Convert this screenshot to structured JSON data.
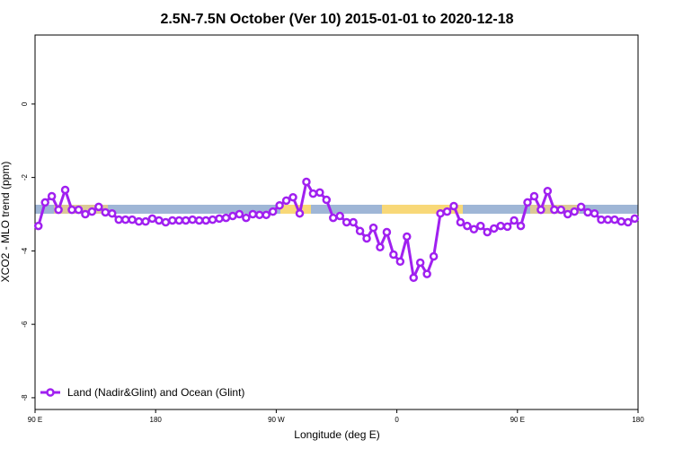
{
  "chart_data": {
    "type": "line",
    "title": "2.5N-7.5N October (Ver 10)   2015-01-01 to 2020-12-18",
    "xlabel": "Longitude (deg E)",
    "ylabel": "XCO2 - MLO trend (ppm)",
    "x": [
      92.5,
      97.5,
      102.5,
      107.5,
      112.5,
      117.5,
      122.5,
      127.5,
      132.5,
      137.5,
      142.5,
      147.5,
      152.5,
      157.5,
      162.5,
      167.5,
      172.5,
      177.5,
      182.5,
      187.5,
      192.5,
      197.5,
      202.5,
      207.5,
      212.5,
      217.5,
      222.5,
      227.5,
      232.5,
      237.5,
      242.5,
      247.5,
      252.5,
      257.5,
      262.5,
      267.5,
      272.5,
      277.5,
      282.5,
      287.5,
      292.5,
      297.5,
      302.5,
      307.5,
      312.5,
      317.5,
      322.5,
      327.5,
      332.5,
      337.5,
      342.5,
      347.5,
      352.5,
      357.5,
      362.5,
      367.5,
      372.5,
      377.5,
      382.5,
      387.5,
      392.5,
      397.5,
      402.5,
      407.5,
      412.5,
      417.5,
      422.5,
      427.5,
      432.5,
      437.5,
      442.5,
      447.5,
      452.5,
      457.5,
      462.5,
      467.5,
      472.5,
      477.5,
      482.5,
      487.5,
      492.5,
      497.5,
      502.5,
      507.5,
      512.5,
      517.5,
      522.5,
      527.5,
      532.5,
      537.5
    ],
    "series": [
      {
        "name": "Land (Nadir&Glint) and Ocean (Glint)",
        "color": "#a020f0",
        "values": [
          -3.32,
          -2.68,
          -2.51,
          -2.88,
          -2.34,
          -2.88,
          -2.88,
          -3.0,
          -2.93,
          -2.8,
          -2.95,
          -2.98,
          -3.15,
          -3.15,
          -3.15,
          -3.2,
          -3.2,
          -3.12,
          -3.17,
          -3.22,
          -3.17,
          -3.17,
          -3.17,
          -3.15,
          -3.17,
          -3.17,
          -3.15,
          -3.12,
          -3.1,
          -3.05,
          -3.0,
          -3.1,
          -3.0,
          -3.02,
          -3.02,
          -2.93,
          -2.76,
          -2.63,
          -2.54,
          -2.98,
          -2.12,
          -2.44,
          -2.41,
          -2.61,
          -3.1,
          -3.05,
          -3.22,
          -3.22,
          -3.46,
          -3.66,
          -3.37,
          -3.9,
          -3.49,
          -4.1,
          -4.29,
          -3.61,
          -4.73,
          -4.32,
          -4.63,
          -4.15,
          -2.98,
          -2.93,
          -2.78,
          -3.22,
          -3.32,
          -3.41,
          -3.32,
          -3.49,
          -3.39,
          -3.32,
          -3.34,
          -3.17,
          -3.32,
          -2.68,
          -2.51,
          -2.88,
          -2.37,
          -2.88,
          -2.88,
          -3.0,
          -2.93,
          -2.8,
          -2.95,
          -2.98,
          -3.15,
          -3.15,
          -3.15,
          -3.2,
          -3.22,
          -3.12
        ]
      }
    ],
    "xlim": [
      90,
      540
    ],
    "xticks": [
      {
        "value": 90,
        "label": "90 E"
      },
      {
        "value": 180,
        "label": "180"
      },
      {
        "value": 270,
        "label": "90 W"
      },
      {
        "value": 360,
        "label": "0"
      },
      {
        "value": 450,
        "label": "90 E"
      },
      {
        "value": 540,
        "label": "180"
      }
    ],
    "ylim": [
      -8.32,
      1.88
    ],
    "yticks": [
      0,
      -2,
      -4,
      -6,
      -8
    ],
    "legend": "bottomleft"
  }
}
